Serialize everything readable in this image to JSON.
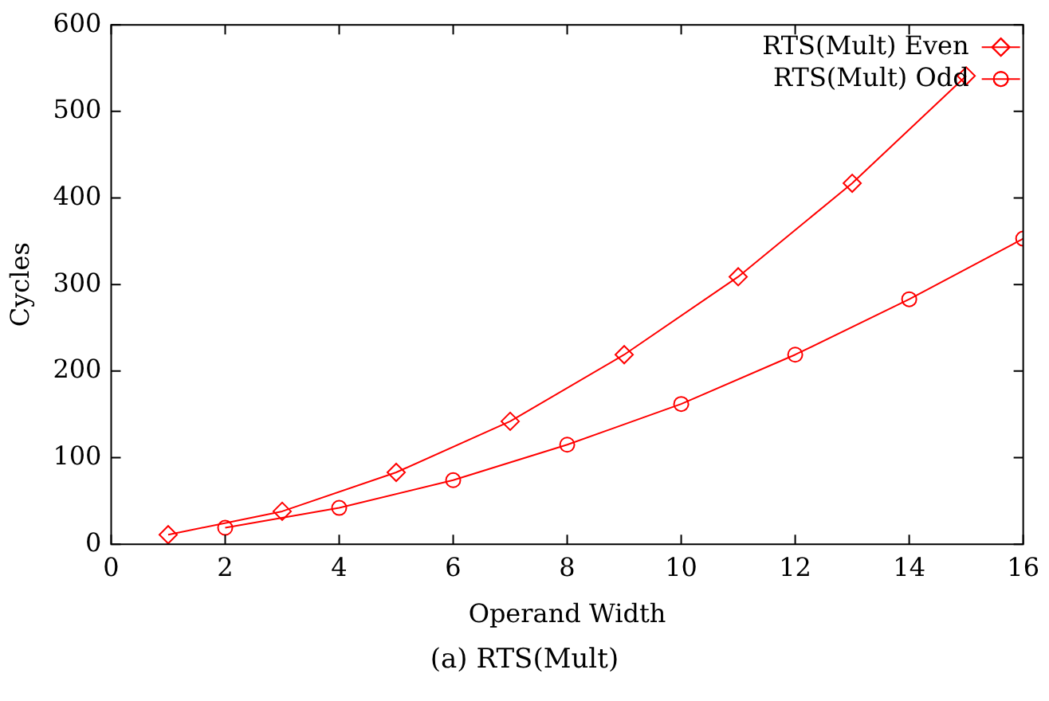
{
  "chart_data": {
    "type": "line",
    "xlabel": "Operand Width",
    "ylabel": "Cycles",
    "annotations": [
      "(a) RTS(Mult)"
    ],
    "xlim": [
      0,
      16
    ],
    "xticks": [
      0,
      2,
      4,
      6,
      8,
      10,
      12,
      14,
      16
    ],
    "ylim": [
      0,
      600
    ],
    "yticks": [
      0,
      100,
      200,
      300,
      400,
      500,
      600
    ],
    "grid": false,
    "legend": "top right",
    "series": [
      {
        "name": "RTS(Mult) Even",
        "color": "#ff0000",
        "marker": "diamond",
        "x": [
          1,
          3,
          5,
          7,
          9,
          11,
          13,
          15
        ],
        "values": [
          11,
          38,
          83,
          142,
          219,
          309,
          417,
          541
        ]
      },
      {
        "name": "RTS(Mult) Odd",
        "color": "#ff0000",
        "marker": "circle",
        "x": [
          2,
          4,
          6,
          8,
          10,
          12,
          14,
          16
        ],
        "values": [
          19,
          42,
          74,
          115,
          162,
          219,
          283,
          353
        ]
      }
    ]
  }
}
